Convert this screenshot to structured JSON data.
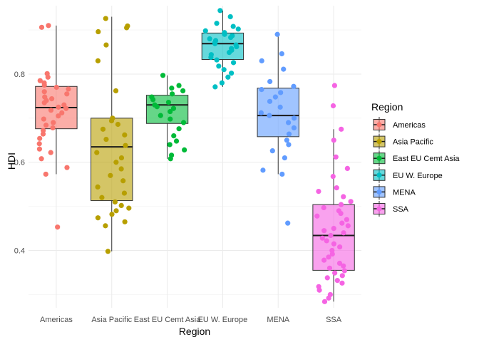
{
  "chart_data": {
    "type": "boxplot",
    "xlabel": "Region",
    "ylabel": "HDI",
    "ylim": [
      0.27,
      0.955
    ],
    "yticks": [
      0.4,
      0.6,
      0.8
    ],
    "ytick_labels": [
      "0.4",
      "0.6",
      "0.8"
    ],
    "grid": true,
    "legend": {
      "title": "Region",
      "position": "right"
    },
    "categories": [
      "Americas",
      "Asia Pacific",
      "East EU Cemt Asia",
      "EU W. Europe",
      "MENA",
      "SSA"
    ],
    "series": [
      {
        "name": "Americas",
        "color": "#F8766D",
        "box": {
          "q1": 0.676,
          "median": 0.724,
          "q3": 0.772,
          "whisker_low": 0.573,
          "whisker_high": 0.91
        },
        "points": [
          0.91,
          0.906,
          0.801,
          0.793,
          0.785,
          0.78,
          0.775,
          0.77,
          0.766,
          0.76,
          0.755,
          0.748,
          0.744,
          0.74,
          0.735,
          0.73,
          0.725,
          0.722,
          0.718,
          0.712,
          0.705,
          0.698,
          0.69,
          0.684,
          0.678,
          0.672,
          0.664,
          0.654,
          0.642,
          0.63,
          0.622,
          0.608,
          0.588,
          0.573,
          0.453
        ]
      },
      {
        "name": "Asia Pacific",
        "color": "#B79F00",
        "box": {
          "q1": 0.513,
          "median": 0.635,
          "q3": 0.7,
          "whisker_low": 0.398,
          "whisker_high": 0.93
        },
        "points": [
          0.926,
          0.909,
          0.905,
          0.896,
          0.866,
          0.83,
          0.762,
          0.7,
          0.694,
          0.686,
          0.675,
          0.662,
          0.652,
          0.638,
          0.622,
          0.61,
          0.6,
          0.585,
          0.57,
          0.558,
          0.544,
          0.53,
          0.52,
          0.51,
          0.502,
          0.496,
          0.49,
          0.482,
          0.474,
          0.465,
          0.456,
          0.398
        ]
      },
      {
        "name": "East EU Cemt Asia",
        "color": "#00BA38",
        "box": {
          "q1": 0.688,
          "median": 0.73,
          "q3": 0.752,
          "whisker_low": 0.608,
          "whisker_high": 0.797
        },
        "points": [
          0.797,
          0.774,
          0.768,
          0.762,
          0.755,
          0.748,
          0.742,
          0.736,
          0.73,
          0.726,
          0.722,
          0.715,
          0.706,
          0.698,
          0.69,
          0.676,
          0.66,
          0.648,
          0.64,
          0.628,
          0.616,
          0.608
        ]
      },
      {
        "name": "EU W. Europe",
        "color": "#00BFC4",
        "box": {
          "q1": 0.833,
          "median": 0.869,
          "q3": 0.893,
          "whisker_low": 0.771,
          "whisker_high": 0.944
        },
        "points": [
          0.944,
          0.93,
          0.915,
          0.908,
          0.902,
          0.898,
          0.894,
          0.89,
          0.887,
          0.883,
          0.88,
          0.876,
          0.872,
          0.869,
          0.866,
          0.862,
          0.858,
          0.854,
          0.849,
          0.844,
          0.838,
          0.832,
          0.826,
          0.818,
          0.81,
          0.802,
          0.793,
          0.78,
          0.771
        ]
      },
      {
        "name": "MENA",
        "color": "#619CFF",
        "box": {
          "q1": 0.658,
          "median": 0.706,
          "q3": 0.768,
          "whisker_low": 0.573,
          "whisker_high": 0.89
        },
        "points": [
          0.89,
          0.846,
          0.83,
          0.811,
          0.783,
          0.772,
          0.765,
          0.758,
          0.748,
          0.738,
          0.725,
          0.712,
          0.706,
          0.7,
          0.69,
          0.678,
          0.664,
          0.65,
          0.64,
          0.626,
          0.61,
          0.582,
          0.573,
          0.462
        ]
      },
      {
        "name": "SSA",
        "color": "#F564E3",
        "box": {
          "q1": 0.355,
          "median": 0.434,
          "q3": 0.504,
          "whisker_low": 0.284,
          "whisker_high": 0.675
        },
        "points": [
          0.774,
          0.728,
          0.675,
          0.65,
          0.612,
          0.586,
          0.568,
          0.542,
          0.534,
          0.522,
          0.511,
          0.504,
          0.497,
          0.49,
          0.484,
          0.478,
          0.47,
          0.462,
          0.456,
          0.45,
          0.445,
          0.44,
          0.434,
          0.428,
          0.422,
          0.415,
          0.408,
          0.4,
          0.392,
          0.385,
          0.378,
          0.371,
          0.365,
          0.36,
          0.354,
          0.349,
          0.343,
          0.338,
          0.332,
          0.326,
          0.318,
          0.31,
          0.3,
          0.292,
          0.284
        ]
      }
    ]
  }
}
